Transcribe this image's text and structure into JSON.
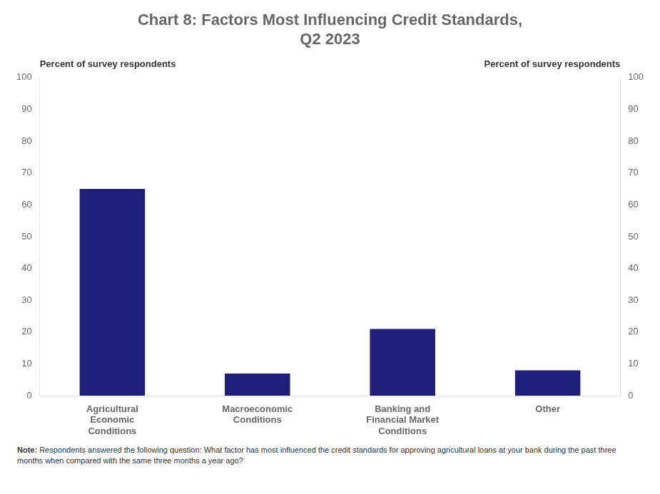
{
  "chart_data": {
    "type": "bar",
    "title": "Chart 8: Factors Most Influencing Credit Standards,\nQ2 2023",
    "categories": [
      "Agricultural\nEconomic\nConditions",
      "Macroeconomic\nConditions",
      "Banking and\nFinancial Market\nConditions",
      "Other"
    ],
    "values": [
      65,
      7,
      21,
      8
    ],
    "color": "#1f1f7a",
    "ylabel": "Percent of survey respondents",
    "y2label": "Percent of survey respondents",
    "ylim": [
      0,
      100
    ],
    "yticks": [
      0,
      10,
      20,
      30,
      40,
      50,
      60,
      70,
      80,
      90,
      100
    ],
    "y2lim": [
      0,
      100
    ],
    "y2ticks": [
      0,
      10,
      20,
      30,
      40,
      50,
      60,
      70,
      80,
      90,
      100
    ],
    "grid": false,
    "note": "Note: Respondents answered the following question: What factor has most influenced the credit standards for approving agricultural loans at your bank during the past three months when compared with the same three months a year ago?"
  }
}
